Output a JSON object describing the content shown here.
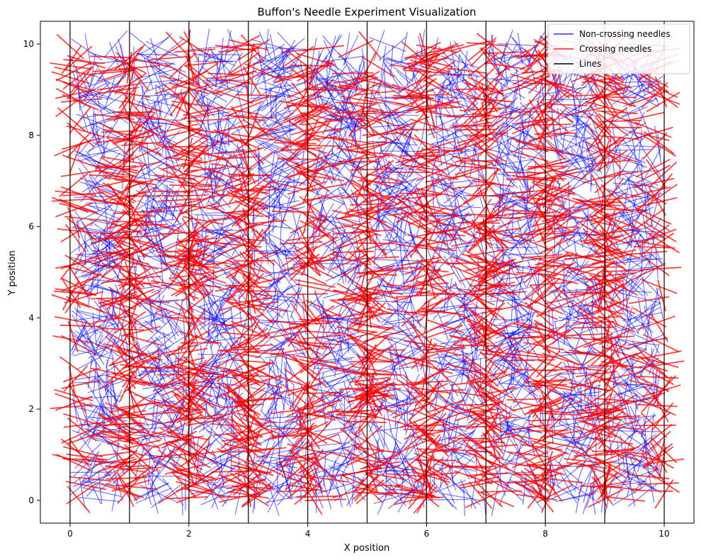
{
  "chart_data": {
    "type": "line",
    "title": "Buffon's Needle Experiment Visualization",
    "xlabel": "X position",
    "ylabel": "Y position",
    "xlim": [
      -0.5,
      10.5
    ],
    "ylim": [
      -0.5,
      10.5
    ],
    "xticks": [
      0,
      2,
      4,
      6,
      8,
      10
    ],
    "yticks": [
      0,
      2,
      4,
      6,
      8,
      10
    ],
    "grid": false,
    "legend_position": "top-right",
    "needle_length": 0.7,
    "parallel_lines_x": [
      0,
      1,
      2,
      3,
      4,
      5,
      6,
      7,
      8,
      9,
      10
    ],
    "series": [
      {
        "name": "Non-crossing needles",
        "color": "#0000ff",
        "opacity": 0.55,
        "stroke": 1.2
      },
      {
        "name": "Crossing needles",
        "color": "#ff0000",
        "opacity": 0.75,
        "stroke": 1.8
      },
      {
        "name": "Lines",
        "color": "#000000",
        "opacity": 0.85,
        "stroke": 1.4
      }
    ]
  }
}
